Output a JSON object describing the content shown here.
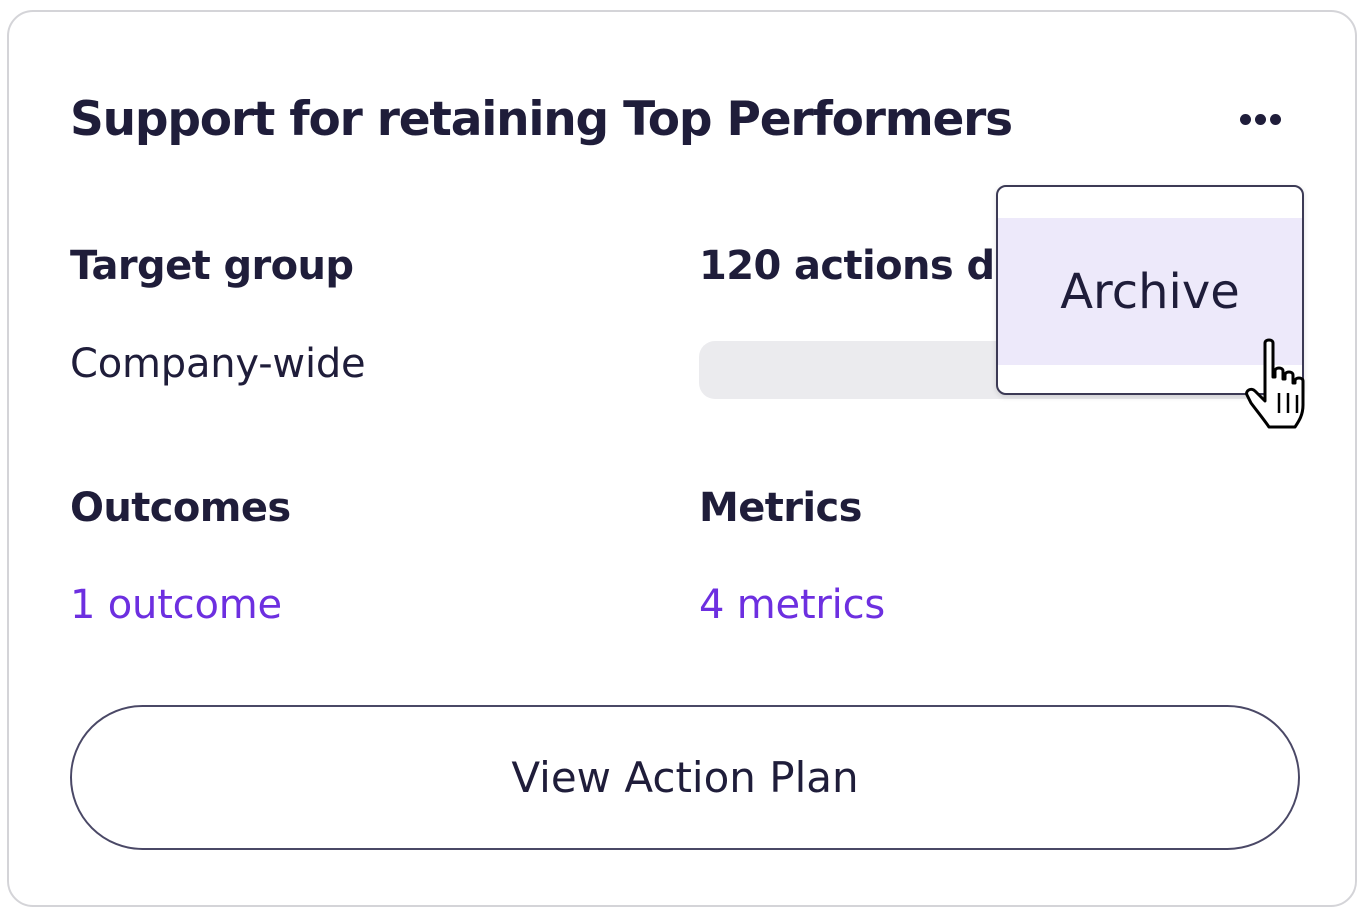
{
  "card": {
    "title": "Support for retaining Top Performers",
    "more_icon": "ellipsis-horizontal-icon",
    "target_group": {
      "label": "Target group",
      "value": "Company-wide"
    },
    "actions": {
      "label": "120 actions dr",
      "progress_fraction": 0
    },
    "outcomes": {
      "label": "Outcomes",
      "link": "1 outcome"
    },
    "metrics": {
      "label": "Metrics",
      "link": "4 metrics"
    },
    "view_button_label": "View Action Plan"
  },
  "menu": {
    "items": [
      {
        "label": "Archive"
      }
    ]
  },
  "cursor_icon": "hand-pointer-icon",
  "colors": {
    "text": "#1f1d3a",
    "accent": "#6d2fe0",
    "menu_hover": "#ede9fa",
    "track": "#ebebee",
    "border": "#d4d4d8"
  }
}
